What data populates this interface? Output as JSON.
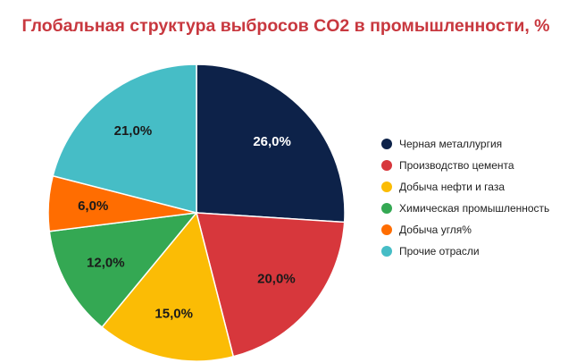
{
  "chart_data": {
    "type": "pie",
    "title": "Глобальная структура выбросов CO2 в промышленности, %",
    "legend_position": "right",
    "slices": [
      {
        "name": "Черная металлургия",
        "value": 26.0,
        "label": "26,0%",
        "color": "#0d2249",
        "label_color": "#ffffff"
      },
      {
        "name": "Производство цемента",
        "value": 20.0,
        "label": "20,0%",
        "color": "#d7373c",
        "label_color": "#1a1a1a"
      },
      {
        "name": "Добыча нефти и газа",
        "value": 15.0,
        "label": "15,0%",
        "color": "#fbbc05",
        "label_color": "#1a1a1a"
      },
      {
        "name": "Химическая промышленность",
        "value": 12.0,
        "label": "12,0%",
        "color": "#34a853",
        "label_color": "#1a1a1a"
      },
      {
        "name": "Добыча угля%",
        "value": 6.0,
        "label": "6,0%",
        "color": "#ff6d01",
        "label_color": "#1a1a1a"
      },
      {
        "name": "Прочие отрасли",
        "value": 21.0,
        "label": "21,0%",
        "color": "#46bdc6",
        "label_color": "#1a1a1a"
      }
    ]
  }
}
